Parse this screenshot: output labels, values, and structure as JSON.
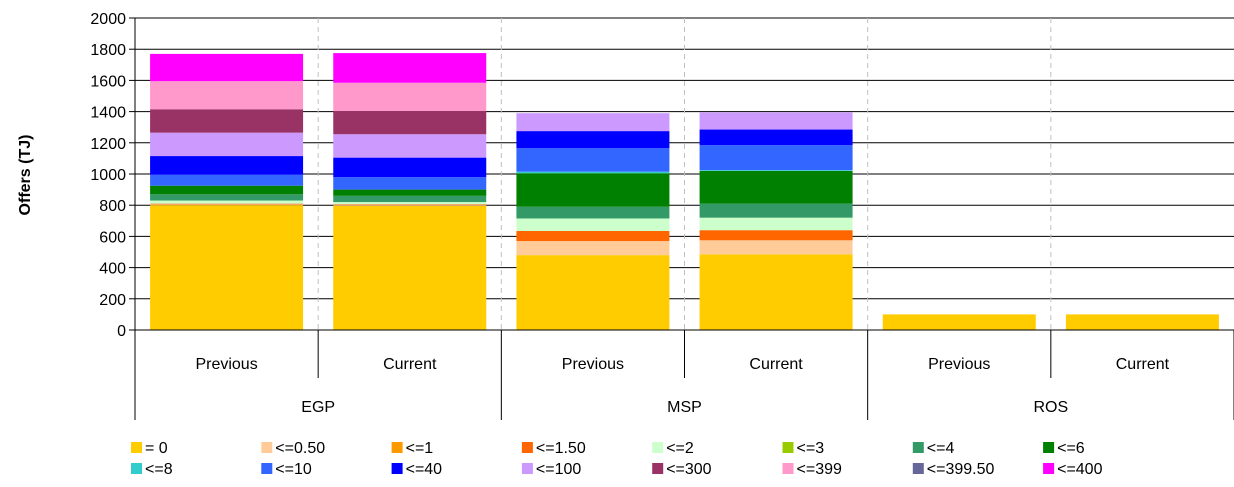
{
  "chart_data": {
    "type": "bar",
    "stacked": true,
    "title": "",
    "xlabel": "",
    "ylabel": "Offers (TJ)",
    "ylim": [
      0,
      2000
    ],
    "yticks": [
      0,
      200,
      400,
      600,
      800,
      1000,
      1200,
      1400,
      1600,
      1800,
      2000
    ],
    "grid": "horizontal",
    "legend_position": "bottom",
    "groups": [
      "EGP",
      "MSP",
      "ROS"
    ],
    "categories": [
      "Previous",
      "Current",
      "Previous",
      "Current",
      "Previous",
      "Current"
    ],
    "category_group": [
      0,
      0,
      1,
      1,
      2,
      2
    ],
    "series": [
      {
        "name": "= 0",
        "color": "#FFCC00",
        "values": [
          800,
          795,
          480,
          485,
          100,
          100
        ]
      },
      {
        "name": "<=0.50",
        "color": "#FFCC99",
        "values": [
          5,
          5,
          90,
          90,
          0,
          0
        ]
      },
      {
        "name": "<=1",
        "color": "#FF9900",
        "values": [
          0,
          0,
          0,
          0,
          0,
          0
        ]
      },
      {
        "name": "<=1.50",
        "color": "#FF6600",
        "values": [
          5,
          5,
          65,
          65,
          0,
          0
        ]
      },
      {
        "name": "<=2",
        "color": "#CCFFCC",
        "values": [
          20,
          15,
          80,
          80,
          0,
          0
        ]
      },
      {
        "name": "<=3",
        "color": "#99CC00",
        "values": [
          0,
          0,
          0,
          0,
          0,
          0
        ]
      },
      {
        "name": "<=4",
        "color": "#339966",
        "values": [
          40,
          40,
          75,
          90,
          0,
          0
        ]
      },
      {
        "name": "<=6",
        "color": "#008000",
        "values": [
          55,
          40,
          215,
          210,
          0,
          0
        ]
      },
      {
        "name": "<=8",
        "color": "#33CCCC",
        "values": [
          0,
          0,
          10,
          5,
          0,
          0
        ]
      },
      {
        "name": "<=10",
        "color": "#3366FF",
        "values": [
          70,
          80,
          150,
          160,
          0,
          0
        ]
      },
      {
        "name": "<=40",
        "color": "#0000FF",
        "values": [
          120,
          125,
          110,
          100,
          0,
          0
        ]
      },
      {
        "name": "<=100",
        "color": "#CC99FF",
        "values": [
          150,
          150,
          115,
          110,
          0,
          0
        ]
      },
      {
        "name": "<=300",
        "color": "#993366",
        "values": [
          150,
          150,
          0,
          0,
          0,
          0
        ]
      },
      {
        "name": "<=399",
        "color": "#FF99CC",
        "values": [
          180,
          180,
          0,
          0,
          0,
          0
        ]
      },
      {
        "name": "<=399.50",
        "color": "#666699",
        "values": [
          0,
          0,
          0,
          0,
          0,
          0
        ]
      },
      {
        "name": "<=400",
        "color": "#FF00FF",
        "values": [
          175,
          190,
          0,
          0,
          0,
          0
        ]
      }
    ]
  }
}
